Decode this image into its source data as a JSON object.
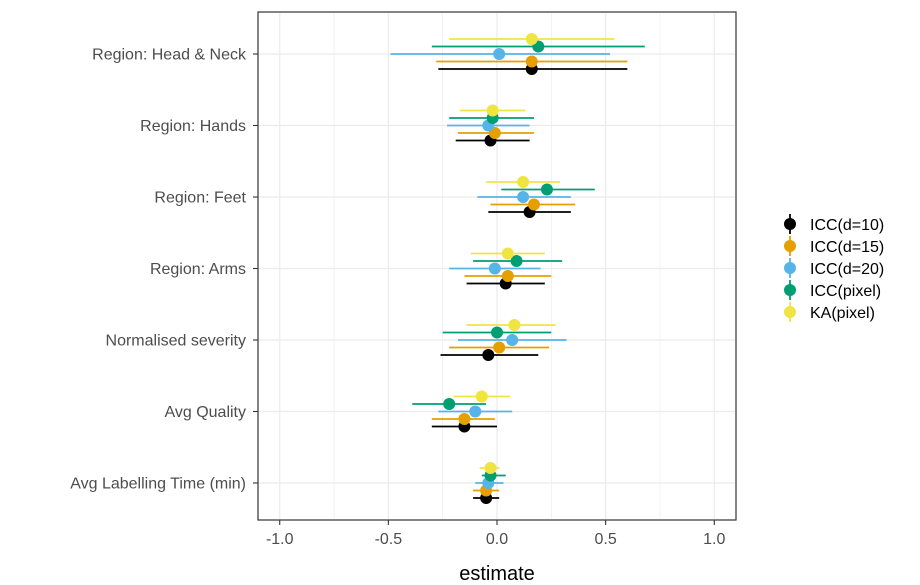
{
  "chart_data": {
    "type": "scatter",
    "subtype": "forest-plot",
    "title": "",
    "xlabel": "estimate",
    "ylabel": "",
    "xlim": [
      -1.1,
      1.1
    ],
    "xticks": [
      -1.0,
      -0.5,
      0.0,
      0.5,
      1.0
    ],
    "xtick_labels": [
      "-1.0",
      "-0.5",
      "0.0",
      "0.5",
      "1.0"
    ],
    "grid": true,
    "legend_position": "right",
    "categories": [
      "Region: Head & Neck",
      "Region: Hands",
      "Region: Feet",
      "Region: Arms",
      "Normalised severity",
      "Avg Quality",
      "Avg Labelling Time (min)"
    ],
    "series": [
      {
        "name": "ICC(d=10)",
        "color": "#000000",
        "estimates": [
          0.16,
          -0.03,
          0.15,
          0.04,
          -0.04,
          -0.15,
          -0.05
        ],
        "lower": [
          -0.27,
          -0.19,
          -0.04,
          -0.14,
          -0.26,
          -0.3,
          -0.11
        ],
        "upper": [
          0.6,
          0.15,
          0.34,
          0.22,
          0.19,
          0.0,
          0.01
        ]
      },
      {
        "name": "ICC(d=15)",
        "color": "#E69F00",
        "estimates": [
          0.16,
          -0.01,
          0.17,
          0.05,
          0.01,
          -0.15,
          -0.05
        ],
        "lower": [
          -0.28,
          -0.18,
          -0.03,
          -0.15,
          -0.22,
          -0.3,
          -0.11
        ],
        "upper": [
          0.6,
          0.17,
          0.36,
          0.25,
          0.24,
          -0.01,
          0.01
        ]
      },
      {
        "name": "ICC(d=20)",
        "color": "#56B4E9",
        "estimates": [
          0.01,
          -0.04,
          0.12,
          -0.01,
          0.07,
          -0.1,
          -0.04
        ],
        "lower": [
          -0.49,
          -0.23,
          -0.09,
          -0.22,
          -0.18,
          -0.27,
          -0.1
        ],
        "upper": [
          0.52,
          0.15,
          0.34,
          0.2,
          0.32,
          0.07,
          0.03
        ]
      },
      {
        "name": "ICC(pixel)",
        "color": "#009E73",
        "estimates": [
          0.19,
          -0.02,
          0.23,
          0.09,
          0.0,
          -0.22,
          -0.03
        ],
        "lower": [
          -0.3,
          -0.22,
          0.02,
          -0.11,
          -0.25,
          -0.39,
          -0.07
        ],
        "upper": [
          0.68,
          0.17,
          0.45,
          0.3,
          0.25,
          -0.05,
          0.04
        ]
      },
      {
        "name": "KA(pixel)",
        "color": "#F0E442",
        "estimates": [
          0.16,
          -0.02,
          0.12,
          0.05,
          0.08,
          -0.07,
          -0.03
        ],
        "lower": [
          -0.22,
          -0.17,
          -0.05,
          -0.12,
          -0.14,
          -0.2,
          -0.08
        ],
        "upper": [
          0.54,
          0.13,
          0.29,
          0.22,
          0.27,
          0.06,
          0.01
        ]
      }
    ]
  }
}
